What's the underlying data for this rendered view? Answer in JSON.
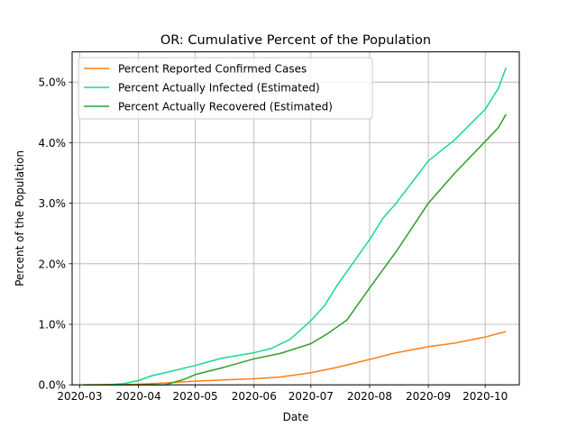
{
  "chart_data": {
    "type": "line",
    "title": "OR: Cumulative Percent of the Population",
    "xlabel": "Date",
    "ylabel": "Percent of the Population",
    "x_ticks": [
      "2020-03",
      "2020-04",
      "2020-05",
      "2020-06",
      "2020-07",
      "2020-08",
      "2020-09",
      "2020-10"
    ],
    "y_ticks": [
      "0.0%",
      "1.0%",
      "2.0%",
      "3.0%",
      "4.0%",
      "5.0%"
    ],
    "ylim": [
      0,
      5.5
    ],
    "xlim": [
      "2020-02-26",
      "2020-10-19"
    ],
    "grid": true,
    "legend_position": "upper-left",
    "series": [
      {
        "name": "Percent Reported Confirmed Cases",
        "color": "#ff7f0e",
        "points": [
          [
            "2020-03-03",
            0.0
          ],
          [
            "2020-04-01",
            0.01
          ],
          [
            "2020-04-15",
            0.03
          ],
          [
            "2020-05-01",
            0.06
          ],
          [
            "2020-05-15",
            0.08
          ],
          [
            "2020-06-01",
            0.1
          ],
          [
            "2020-06-15",
            0.13
          ],
          [
            "2020-07-01",
            0.2
          ],
          [
            "2020-07-15",
            0.29
          ],
          [
            "2020-08-01",
            0.42
          ],
          [
            "2020-08-15",
            0.53
          ],
          [
            "2020-09-01",
            0.63
          ],
          [
            "2020-09-15",
            0.69
          ],
          [
            "2020-10-01",
            0.79
          ],
          [
            "2020-10-12",
            0.88
          ]
        ]
      },
      {
        "name": "Percent Actually Infected (Estimated)",
        "color": "#17d98c",
        "points": [
          [
            "2020-03-03",
            0.0
          ],
          [
            "2020-03-15",
            0.0
          ],
          [
            "2020-03-24",
            0.02
          ],
          [
            "2020-04-01",
            0.07
          ],
          [
            "2020-04-08",
            0.15
          ],
          [
            "2020-04-15",
            0.2
          ],
          [
            "2020-05-01",
            0.32
          ],
          [
            "2020-05-15",
            0.44
          ],
          [
            "2020-06-01",
            0.53
          ],
          [
            "2020-06-10",
            0.6
          ],
          [
            "2020-06-20",
            0.75
          ],
          [
            "2020-07-01",
            1.06
          ],
          [
            "2020-07-08",
            1.3
          ],
          [
            "2020-07-15",
            1.65
          ],
          [
            "2020-08-01",
            2.4
          ],
          [
            "2020-08-08",
            2.75
          ],
          [
            "2020-08-15",
            3.0
          ],
          [
            "2020-09-01",
            3.7
          ],
          [
            "2020-09-15",
            4.05
          ],
          [
            "2020-10-01",
            4.55
          ],
          [
            "2020-10-08",
            4.9
          ],
          [
            "2020-10-12",
            5.24
          ]
        ]
      },
      {
        "name": "Percent Actually Recovered (Estimated)",
        "color": "#2ca02c",
        "points": [
          [
            "2020-03-03",
            0.0
          ],
          [
            "2020-04-15",
            0.0
          ],
          [
            "2020-04-25",
            0.09
          ],
          [
            "2020-05-01",
            0.17
          ],
          [
            "2020-05-15",
            0.28
          ],
          [
            "2020-06-01",
            0.43
          ],
          [
            "2020-06-15",
            0.52
          ],
          [
            "2020-07-01",
            0.68
          ],
          [
            "2020-07-10",
            0.85
          ],
          [
            "2020-07-20",
            1.07
          ],
          [
            "2020-08-01",
            1.6
          ],
          [
            "2020-08-15",
            2.2
          ],
          [
            "2020-09-01",
            3.0
          ],
          [
            "2020-09-15",
            3.5
          ],
          [
            "2020-10-01",
            4.02
          ],
          [
            "2020-10-08",
            4.25
          ],
          [
            "2020-10-12",
            4.47
          ]
        ]
      }
    ]
  }
}
